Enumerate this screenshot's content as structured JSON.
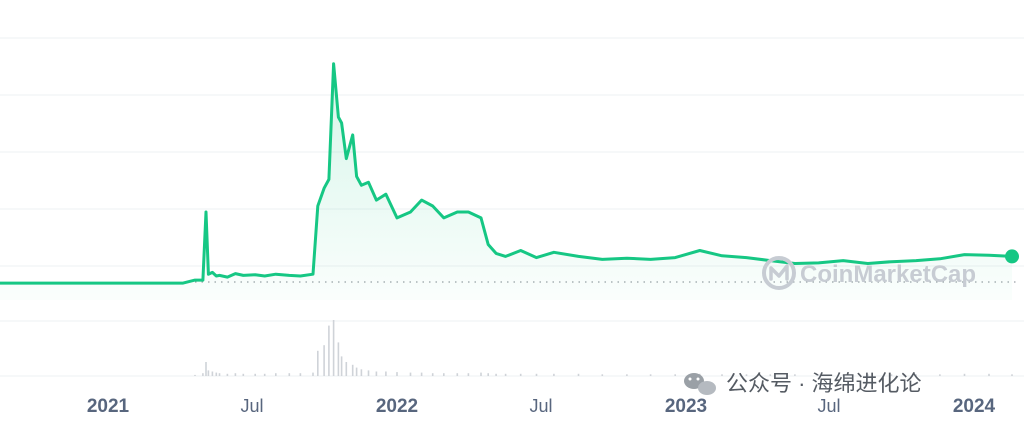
{
  "chart_data": {
    "type": "area",
    "x_tick_labels": [
      "2021",
      "Jul",
      "2022",
      "Jul",
      "2023",
      "Jul",
      "2024"
    ],
    "x": [
      "2020-09-01",
      "2020-11-01",
      "2021-01-01",
      "2021-03-01",
      "2021-04-20",
      "2021-05-05",
      "2021-05-15",
      "2021-05-19",
      "2021-05-22",
      "2021-05-27",
      "2021-06-01",
      "2021-06-05",
      "2021-06-15",
      "2021-06-25",
      "2021-07-05",
      "2021-07-20",
      "2021-08-01",
      "2021-08-15",
      "2021-09-01",
      "2021-09-15",
      "2021-10-01",
      "2021-10-07",
      "2021-10-15",
      "2021-10-21",
      "2021-10-27",
      "2021-11-02",
      "2021-11-06",
      "2021-11-12",
      "2021-11-20",
      "2021-11-25",
      "2021-12-01",
      "2021-12-10",
      "2021-12-20",
      "2022-01-01",
      "2022-01-15",
      "2022-02-01",
      "2022-02-15",
      "2022-03-01",
      "2022-03-15",
      "2022-04-01",
      "2022-04-15",
      "2022-05-01",
      "2022-05-10",
      "2022-05-20",
      "2022-06-01",
      "2022-06-20",
      "2022-07-10",
      "2022-08-01",
      "2022-09-01",
      "2022-10-01",
      "2022-11-01",
      "2022-12-01",
      "2023-01-01",
      "2023-02-01",
      "2023-03-01",
      "2023-04-01",
      "2023-05-01",
      "2023-06-01",
      "2023-07-01",
      "2023-08-01",
      "2023-09-01",
      "2023-10-01",
      "2023-11-01",
      "2023-12-01",
      "2024-01-01",
      "2024-02-01",
      "2024-03-01"
    ],
    "series": [
      {
        "values": [
          0,
          0,
          0,
          0,
          0,
          0.5,
          0.5,
          12,
          1.5,
          1.8,
          1.2,
          1.3,
          1.0,
          1.6,
          1.3,
          1.4,
          1.2,
          1.5,
          1.3,
          1.2,
          1.5,
          13,
          16,
          17.5,
          37,
          28,
          27,
          21,
          25,
          18,
          16.5,
          17,
          14,
          15,
          11,
          12,
          14,
          13,
          11,
          12,
          12,
          11,
          6.5,
          5,
          4.5,
          5.5,
          4.3,
          5.2,
          4.5,
          4,
          4.2,
          4.0,
          4.3,
          5.5,
          4.6,
          4.3,
          3.8,
          3.3,
          3.4,
          3.8,
          3.3,
          3.6,
          3.8,
          4.1,
          4.8,
          4.7,
          4.5
        ]
      }
    ],
    "volume_relative": [
      0,
      0,
      0,
      0,
      0,
      0.02,
      0.05,
      0.25,
      0.1,
      0.08,
      0.06,
      0.05,
      0.04,
      0.05,
      0.04,
      0.04,
      0.04,
      0.05,
      0.05,
      0.05,
      0.06,
      0.45,
      0.55,
      0.9,
      1.0,
      0.6,
      0.35,
      0.25,
      0.2,
      0.15,
      0.12,
      0.1,
      0.08,
      0.08,
      0.07,
      0.06,
      0.06,
      0.05,
      0.05,
      0.05,
      0.05,
      0.06,
      0.05,
      0.04,
      0.04,
      0.04,
      0.04,
      0.04,
      0.04,
      0.03,
      0.03,
      0.03,
      0.03,
      0.04,
      0.03,
      0.03,
      0.03,
      0.03,
      0.03,
      0.03,
      0.03,
      0.03,
      0.03,
      0.03,
      0.04,
      0.04,
      0.03
    ],
    "ylim": [
      -1,
      40
    ],
    "grid": true,
    "line_color": "#16c784",
    "area_color": "#16c784",
    "volume_color": "#cfd3d8"
  },
  "watermark": {
    "text": "CoinMarketCap",
    "color": "#c7ccd3"
  },
  "footer": {
    "text": "公众号 · 海绵进化论",
    "icon": "wechat-icon"
  }
}
